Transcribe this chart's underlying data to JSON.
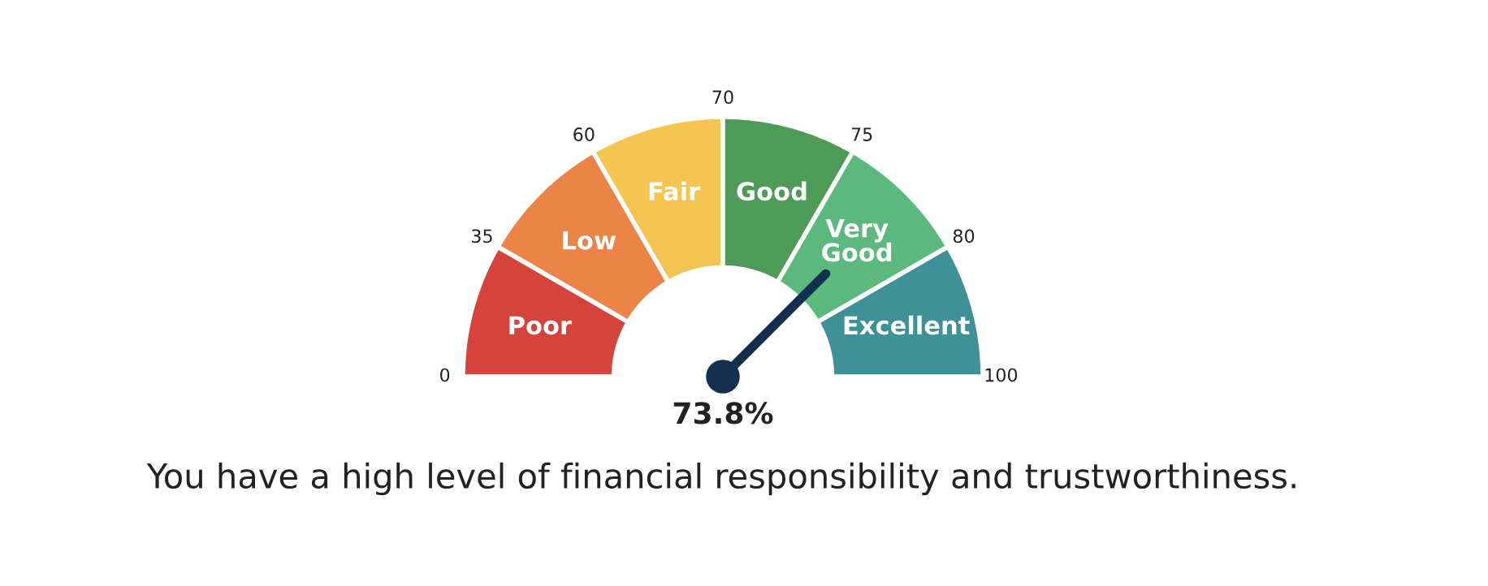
{
  "chart_data": {
    "type": "donut",
    "categories": [
      "Poor",
      "Low",
      "Fair",
      "Good",
      "Very\nGood",
      "Excellent"
    ],
    "values": [
      16.7,
      16.7,
      16.7,
      16.7,
      16.7,
      16.7
    ],
    "colors": [
      "#d6433a",
      "#ec8448",
      "#f4c553",
      "#4d9b57",
      "#5cb97d",
      "#3e9196"
    ],
    "needle": "Very\nGood",
    "annotations": [
      "0",
      "35",
      "60",
      "70",
      "75",
      "80",
      "100",
      "73.8%",
      "You have a high level of financial responsibility and trustworthiness."
    ]
  }
}
